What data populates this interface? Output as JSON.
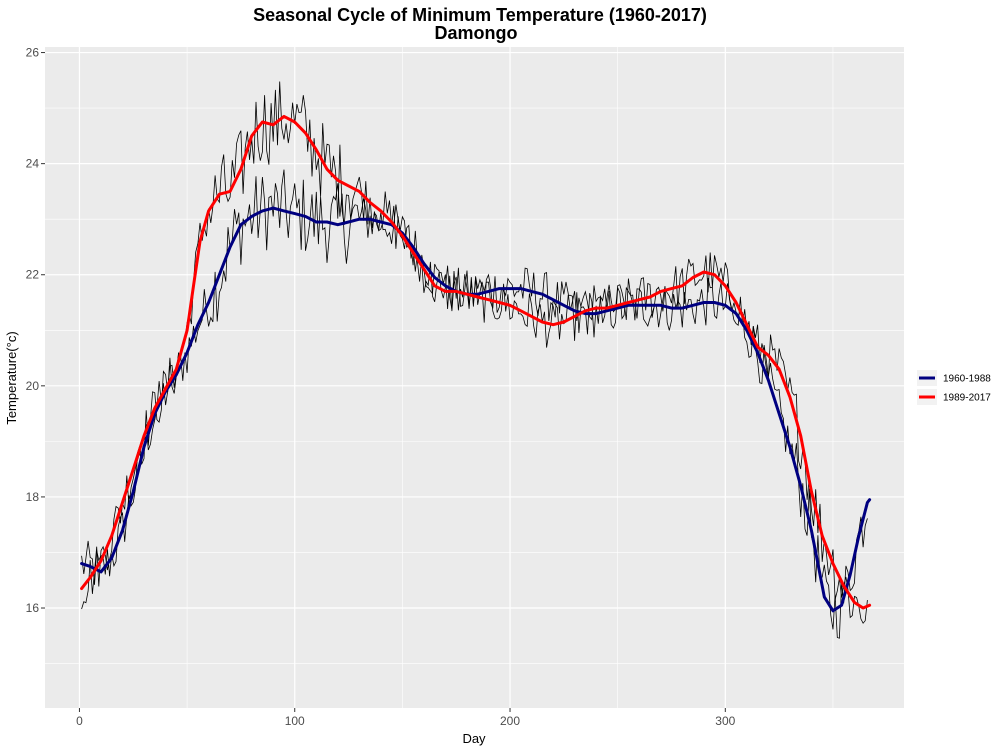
{
  "chart_data": {
    "type": "line",
    "title": "Seasonal Cycle of Minimum Temperature (1960-2017)",
    "subtitle": "Damongo",
    "xlabel": "Day",
    "ylabel": "Temperature(°c)",
    "xlim": [
      -16,
      383
    ],
    "ylim": [
      14.2,
      26.1
    ],
    "xticks": [
      0,
      100,
      200,
      300
    ],
    "yticks": [
      16,
      18,
      20,
      22,
      24,
      26
    ],
    "grid": true,
    "legend_position": "right",
    "background": "#EBEBEB",
    "series": [
      {
        "name": "1960-1988",
        "color": "#000080",
        "knots": [
          [
            1,
            16.8
          ],
          [
            5,
            16.75
          ],
          [
            10,
            16.65
          ],
          [
            15,
            16.9
          ],
          [
            20,
            17.4
          ],
          [
            25,
            18.1
          ],
          [
            30,
            18.9
          ],
          [
            35,
            19.5
          ],
          [
            40,
            19.9
          ],
          [
            45,
            20.2
          ],
          [
            50,
            20.6
          ],
          [
            55,
            21.1
          ],
          [
            60,
            21.5
          ],
          [
            65,
            22.0
          ],
          [
            70,
            22.5
          ],
          [
            75,
            22.9
          ],
          [
            80,
            23.05
          ],
          [
            85,
            23.15
          ],
          [
            90,
            23.2
          ],
          [
            95,
            23.15
          ],
          [
            100,
            23.1
          ],
          [
            105,
            23.05
          ],
          [
            110,
            22.95
          ],
          [
            115,
            22.95
          ],
          [
            120,
            22.9
          ],
          [
            125,
            22.95
          ],
          [
            130,
            23.0
          ],
          [
            135,
            23.0
          ],
          [
            140,
            22.95
          ],
          [
            145,
            22.9
          ],
          [
            150,
            22.75
          ],
          [
            155,
            22.5
          ],
          [
            160,
            22.2
          ],
          [
            165,
            21.95
          ],
          [
            170,
            21.8
          ],
          [
            175,
            21.7
          ],
          [
            180,
            21.65
          ],
          [
            185,
            21.65
          ],
          [
            190,
            21.7
          ],
          [
            195,
            21.75
          ],
          [
            200,
            21.75
          ],
          [
            205,
            21.75
          ],
          [
            210,
            21.7
          ],
          [
            215,
            21.65
          ],
          [
            220,
            21.55
          ],
          [
            225,
            21.45
          ],
          [
            230,
            21.35
          ],
          [
            235,
            21.3
          ],
          [
            240,
            21.3
          ],
          [
            245,
            21.35
          ],
          [
            250,
            21.4
          ],
          [
            255,
            21.45
          ],
          [
            260,
            21.45
          ],
          [
            265,
            21.45
          ],
          [
            270,
            21.45
          ],
          [
            275,
            21.4
          ],
          [
            280,
            21.4
          ],
          [
            285,
            21.45
          ],
          [
            290,
            21.5
          ],
          [
            295,
            21.5
          ],
          [
            300,
            21.45
          ],
          [
            305,
            21.3
          ],
          [
            310,
            21.0
          ],
          [
            315,
            20.6
          ],
          [
            320,
            20.1
          ],
          [
            325,
            19.5
          ],
          [
            330,
            18.9
          ],
          [
            335,
            18.2
          ],
          [
            340,
            17.4
          ],
          [
            343,
            16.8
          ],
          [
            346,
            16.2
          ],
          [
            350,
            15.95
          ],
          [
            354,
            16.05
          ],
          [
            358,
            16.6
          ],
          [
            362,
            17.3
          ],
          [
            366,
            17.9
          ],
          [
            367,
            17.95
          ]
        ]
      },
      {
        "name": "1989-2017",
        "color": "#FF0000",
        "knots": [
          [
            1,
            16.35
          ],
          [
            5,
            16.55
          ],
          [
            10,
            16.85
          ],
          [
            15,
            17.3
          ],
          [
            20,
            17.9
          ],
          [
            25,
            18.5
          ],
          [
            30,
            19.1
          ],
          [
            35,
            19.6
          ],
          [
            40,
            19.95
          ],
          [
            45,
            20.3
          ],
          [
            50,
            21.0
          ],
          [
            53,
            21.8
          ],
          [
            56,
            22.6
          ],
          [
            60,
            23.15
          ],
          [
            65,
            23.45
          ],
          [
            70,
            23.5
          ],
          [
            75,
            23.9
          ],
          [
            80,
            24.5
          ],
          [
            85,
            24.75
          ],
          [
            90,
            24.7
          ],
          [
            95,
            24.85
          ],
          [
            100,
            24.75
          ],
          [
            105,
            24.55
          ],
          [
            110,
            24.25
          ],
          [
            115,
            23.9
          ],
          [
            120,
            23.7
          ],
          [
            125,
            23.6
          ],
          [
            130,
            23.5
          ],
          [
            135,
            23.3
          ],
          [
            140,
            23.15
          ],
          [
            145,
            22.95
          ],
          [
            150,
            22.7
          ],
          [
            155,
            22.4
          ],
          [
            160,
            22.1
          ],
          [
            165,
            21.8
          ],
          [
            170,
            21.7
          ],
          [
            175,
            21.7
          ],
          [
            180,
            21.65
          ],
          [
            185,
            21.6
          ],
          [
            190,
            21.55
          ],
          [
            195,
            21.5
          ],
          [
            200,
            21.45
          ],
          [
            205,
            21.35
          ],
          [
            210,
            21.25
          ],
          [
            215,
            21.15
          ],
          [
            220,
            21.1
          ],
          [
            225,
            21.15
          ],
          [
            230,
            21.25
          ],
          [
            235,
            21.35
          ],
          [
            240,
            21.4
          ],
          [
            245,
            21.4
          ],
          [
            250,
            21.45
          ],
          [
            255,
            21.5
          ],
          [
            260,
            21.55
          ],
          [
            265,
            21.6
          ],
          [
            270,
            21.7
          ],
          [
            275,
            21.75
          ],
          [
            280,
            21.8
          ],
          [
            285,
            21.95
          ],
          [
            290,
            22.05
          ],
          [
            295,
            22.0
          ],
          [
            300,
            21.8
          ],
          [
            305,
            21.5
          ],
          [
            310,
            21.1
          ],
          [
            315,
            20.7
          ],
          [
            320,
            20.55
          ],
          [
            325,
            20.3
          ],
          [
            330,
            19.8
          ],
          [
            335,
            19.1
          ],
          [
            340,
            18.1
          ],
          [
            345,
            17.3
          ],
          [
            350,
            16.8
          ],
          [
            355,
            16.4
          ],
          [
            360,
            16.1
          ],
          [
            364,
            16.0
          ],
          [
            367,
            16.05
          ]
        ]
      }
    ]
  }
}
